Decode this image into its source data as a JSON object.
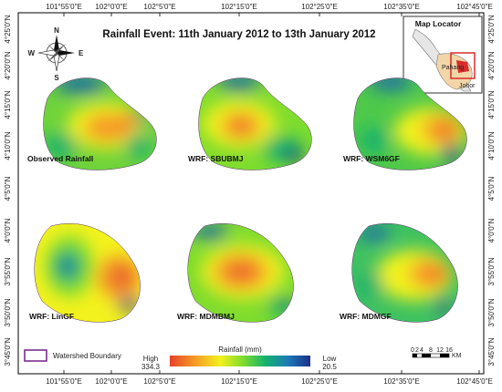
{
  "title": "Rainfall Event: 11th January 2012 to 13th January 2012",
  "top_ticks": [
    "101°55'0\"E",
    "102°0'0\"E",
    "102°5'0\"E",
    "102°15'0\"E",
    "102°25'0\"E",
    "102°35'0\"E",
    "102°45'0\"E"
  ],
  "bottom_ticks": [
    "101°55'0\"E",
    "102°0'0\"E",
    "102°5'0\"E",
    "102°15'0\"E",
    "102°25'0\"E",
    "102°35'0\"E",
    "102°45'0\"E"
  ],
  "left_ticks": [
    "4°25'0\"N",
    "4°20'0\"N",
    "4°15'0\"N",
    "4°10'0\"N",
    "4°5'0\"N",
    "4°0'0\"N",
    "3°55'0\"N",
    "3°50'0\"N",
    "3°45'0\"N"
  ],
  "right_ticks": [
    "4°25'0\"N",
    "4°20'0\"N",
    "4°15'0\"N",
    "4°10'0\"N",
    "4°5'0\"N",
    "4°0'0\"N",
    "3°55'0\"N",
    "3°50'0\"N",
    "3°45'0\"N"
  ],
  "compass": {
    "n": "N",
    "s": "S",
    "e": "E",
    "w": "W"
  },
  "locator": {
    "title": "Map Locator",
    "label": "Pahang",
    "label2": "Johor"
  },
  "panels": [
    {
      "label": "Observed Rainfall"
    },
    {
      "label": "WRF: SBUBMJ"
    },
    {
      "label": "WRF: WSM6GF"
    },
    {
      "label": "WRF: LinGF"
    },
    {
      "label": "WRF: MDMBMJ"
    },
    {
      "label": "WRF: MDMGF"
    }
  ],
  "legend": {
    "boundary_label": "Watershed Boundary",
    "boundary_color": "#7b2d8e",
    "rainfall_title": "Rainfall (mm)",
    "high_label": "High",
    "high_value": "334.3",
    "low_label": "Low",
    "low_value": "20.5",
    "colors": [
      "#e8412a",
      "#f59b25",
      "#f2f21e",
      "#7fdc2e",
      "#14b26e",
      "#1d7ab8",
      "#1c2f8a"
    ]
  },
  "scale_bar": {
    "labels": [
      "0",
      "2",
      "4",
      "8",
      "12",
      "16"
    ],
    "unit": "KM"
  }
}
